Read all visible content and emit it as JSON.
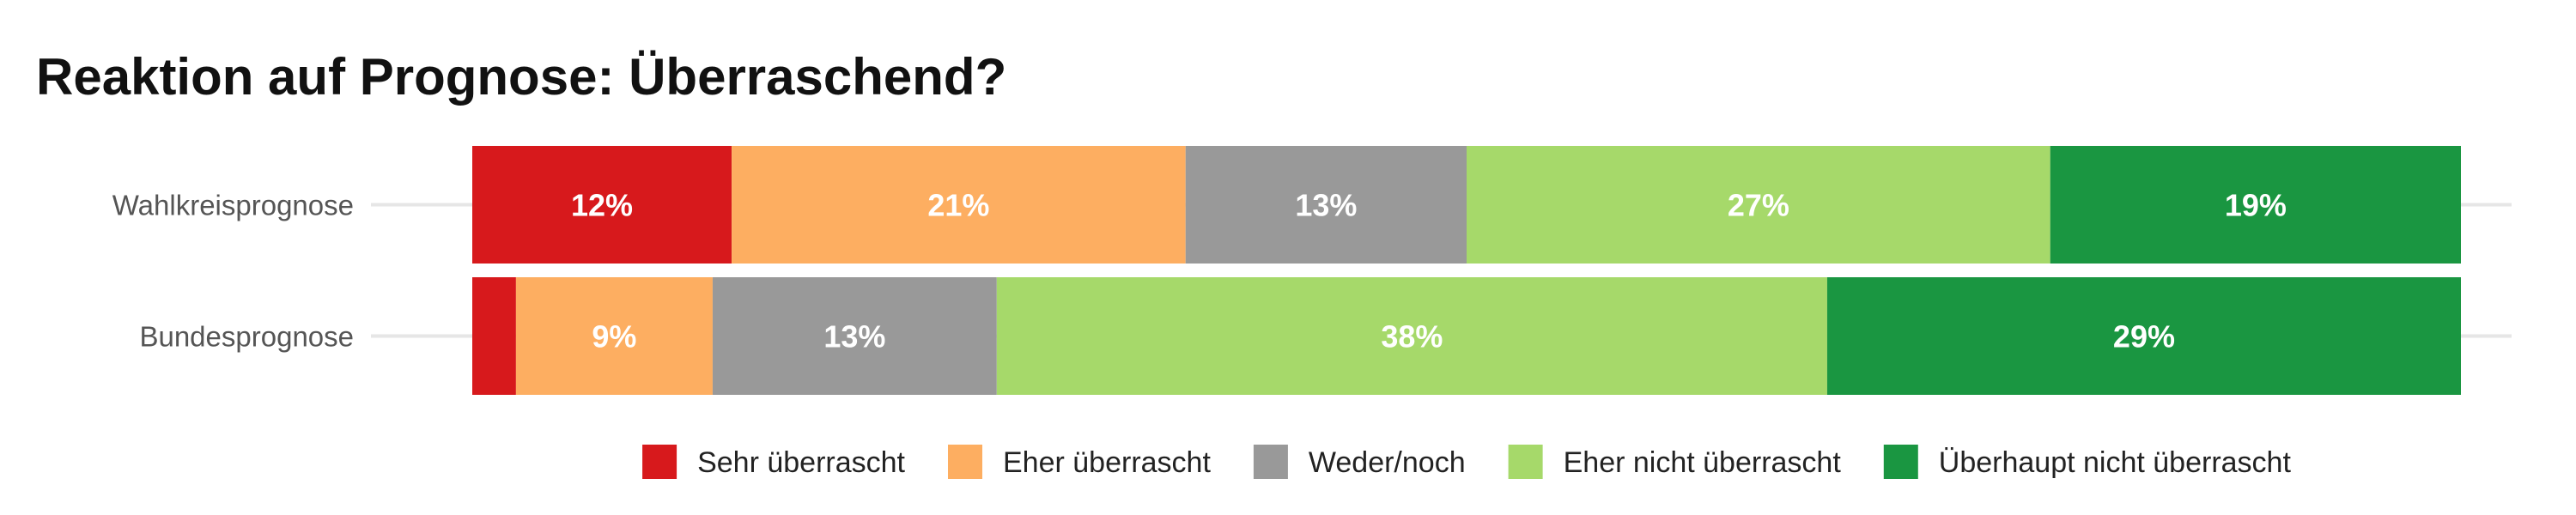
{
  "chart_data": {
    "type": "bar",
    "orientation": "horizontal",
    "stacked": true,
    "normalized": true,
    "title": "Reaktion auf Prognose: Überraschend?",
    "categories": [
      "Wahlkreisprognose",
      "Bundesprognose"
    ],
    "series": [
      {
        "name": "Sehr überrascht",
        "color": "#d7191c",
        "values": [
          12,
          2
        ],
        "labels": [
          "12%",
          ""
        ]
      },
      {
        "name": "Eher überrascht",
        "color": "#fdae61",
        "values": [
          21,
          9
        ],
        "labels": [
          "21%",
          "9%"
        ]
      },
      {
        "name": "Weder/noch",
        "color": "#999999",
        "values": [
          13,
          13
        ],
        "labels": [
          "13%",
          "13%"
        ]
      },
      {
        "name": "Eher nicht überrascht",
        "color": "#a6d96a",
        "values": [
          27,
          38
        ],
        "labels": [
          "27%",
          "38%"
        ]
      },
      {
        "name": "Überhaupt nicht überrascht",
        "color": "#1a9641",
        "values": [
          19,
          29
        ],
        "labels": [
          "19%",
          "29%"
        ]
      }
    ],
    "legend_position": "bottom",
    "grid": true
  }
}
